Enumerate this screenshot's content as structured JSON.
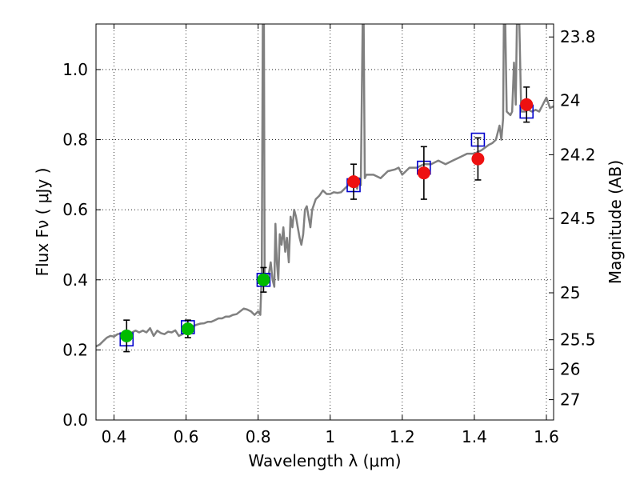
{
  "chart_data": {
    "type": "scatter",
    "xlabel": "Wavelength  λ (μm)",
    "ylabel": "Flux  Fν  ( μJy )",
    "ylabel_right": "Magnitude (AB)",
    "xlim": [
      0.35,
      1.62
    ],
    "ylim": [
      0.0,
      1.13
    ],
    "grid": true,
    "x_ticks": [
      {
        "value": 0.4,
        "label": "0.4"
      },
      {
        "value": 0.6,
        "label": "0.6"
      },
      {
        "value": 0.8,
        "label": "0.8"
      },
      {
        "value": 1.0,
        "label": "1"
      },
      {
        "value": 1.2,
        "label": "1.2"
      },
      {
        "value": 1.4,
        "label": "1.4"
      },
      {
        "value": 1.6,
        "label": "1.6"
      }
    ],
    "y_ticks": [
      {
        "value": 0.0,
        "label": "0.0"
      },
      {
        "value": 0.2,
        "label": "0.2"
      },
      {
        "value": 0.4,
        "label": "0.4"
      },
      {
        "value": 0.6,
        "label": "0.6"
      },
      {
        "value": 0.8,
        "label": "0.8"
      },
      {
        "value": 1.0,
        "label": "1.0"
      }
    ],
    "right_ticks": [
      {
        "flux": 1.093,
        "label": "23.8"
      },
      {
        "flux": 0.912,
        "label": "24"
      },
      {
        "flux": 0.757,
        "label": "24.2"
      },
      {
        "flux": 0.575,
        "label": "24.5"
      },
      {
        "flux": 0.363,
        "label": "25"
      },
      {
        "flux": 0.229,
        "label": "25.5"
      },
      {
        "flux": 0.145,
        "label": "26"
      },
      {
        "flux": 0.058,
        "label": "27"
      }
    ],
    "series": [
      {
        "name": "model_spectrum",
        "kind": "line",
        "color": "#808080",
        "points": [
          [
            0.35,
            0.21
          ],
          [
            0.36,
            0.215
          ],
          [
            0.37,
            0.225
          ],
          [
            0.38,
            0.235
          ],
          [
            0.39,
            0.24
          ],
          [
            0.4,
            0.238
          ],
          [
            0.41,
            0.245
          ],
          [
            0.42,
            0.247
          ],
          [
            0.43,
            0.238
          ],
          [
            0.44,
            0.245
          ],
          [
            0.45,
            0.25
          ],
          [
            0.46,
            0.255
          ],
          [
            0.47,
            0.25
          ],
          [
            0.48,
            0.255
          ],
          [
            0.49,
            0.25
          ],
          [
            0.5,
            0.262
          ],
          [
            0.51,
            0.24
          ],
          [
            0.52,
            0.255
          ],
          [
            0.53,
            0.248
          ],
          [
            0.54,
            0.245
          ],
          [
            0.55,
            0.252
          ],
          [
            0.56,
            0.25
          ],
          [
            0.57,
            0.256
          ],
          [
            0.58,
            0.24
          ],
          [
            0.59,
            0.245
          ],
          [
            0.6,
            0.252
          ],
          [
            0.61,
            0.262
          ],
          [
            0.62,
            0.268
          ],
          [
            0.63,
            0.272
          ],
          [
            0.64,
            0.275
          ],
          [
            0.65,
            0.276
          ],
          [
            0.66,
            0.28
          ],
          [
            0.67,
            0.28
          ],
          [
            0.68,
            0.285
          ],
          [
            0.69,
            0.29
          ],
          [
            0.7,
            0.29
          ],
          [
            0.71,
            0.295
          ],
          [
            0.72,
            0.295
          ],
          [
            0.73,
            0.3
          ],
          [
            0.74,
            0.302
          ],
          [
            0.75,
            0.31
          ],
          [
            0.76,
            0.318
          ],
          [
            0.77,
            0.315
          ],
          [
            0.78,
            0.31
          ],
          [
            0.79,
            0.3
          ],
          [
            0.8,
            0.31
          ],
          [
            0.806,
            0.3
          ],
          [
            0.81,
            0.42
          ],
          [
            0.813,
            1.13
          ],
          [
            0.816,
            1.13
          ],
          [
            0.818,
            0.42
          ],
          [
            0.822,
            0.4
          ],
          [
            0.83,
            0.42
          ],
          [
            0.835,
            0.45
          ],
          [
            0.84,
            0.4
          ],
          [
            0.845,
            0.38
          ],
          [
            0.848,
            0.56
          ],
          [
            0.852,
            0.45
          ],
          [
            0.856,
            0.4
          ],
          [
            0.86,
            0.53
          ],
          [
            0.865,
            0.5
          ],
          [
            0.87,
            0.55
          ],
          [
            0.875,
            0.48
          ],
          [
            0.88,
            0.52
          ],
          [
            0.885,
            0.45
          ],
          [
            0.89,
            0.58
          ],
          [
            0.895,
            0.55
          ],
          [
            0.9,
            0.6
          ],
          [
            0.905,
            0.58
          ],
          [
            0.91,
            0.55
          ],
          [
            0.915,
            0.52
          ],
          [
            0.92,
            0.5
          ],
          [
            0.925,
            0.53
          ],
          [
            0.93,
            0.6
          ],
          [
            0.935,
            0.61
          ],
          [
            0.94,
            0.58
          ],
          [
            0.945,
            0.55
          ],
          [
            0.95,
            0.6
          ],
          [
            0.96,
            0.63
          ],
          [
            0.97,
            0.64
          ],
          [
            0.98,
            0.655
          ],
          [
            0.99,
            0.645
          ],
          [
            1.0,
            0.645
          ],
          [
            1.01,
            0.65
          ],
          [
            1.02,
            0.648
          ],
          [
            1.03,
            0.65
          ],
          [
            1.04,
            0.66
          ],
          [
            1.05,
            0.67
          ],
          [
            1.06,
            0.68
          ],
          [
            1.065,
            0.69
          ],
          [
            1.07,
            0.67
          ],
          [
            1.075,
            0.66
          ],
          [
            1.08,
            0.69
          ],
          [
            1.085,
            0.67
          ],
          [
            1.09,
            1.13
          ],
          [
            1.093,
            1.13
          ],
          [
            1.096,
            0.69
          ],
          [
            1.1,
            0.7
          ],
          [
            1.12,
            0.7
          ],
          [
            1.14,
            0.69
          ],
          [
            1.16,
            0.71
          ],
          [
            1.18,
            0.715
          ],
          [
            1.19,
            0.72
          ],
          [
            1.2,
            0.7
          ],
          [
            1.21,
            0.71
          ],
          [
            1.22,
            0.72
          ],
          [
            1.24,
            0.72
          ],
          [
            1.26,
            0.73
          ],
          [
            1.28,
            0.73
          ],
          [
            1.3,
            0.74
          ],
          [
            1.32,
            0.73
          ],
          [
            1.34,
            0.74
          ],
          [
            1.36,
            0.75
          ],
          [
            1.38,
            0.76
          ],
          [
            1.4,
            0.76
          ],
          [
            1.42,
            0.77
          ],
          [
            1.44,
            0.785
          ],
          [
            1.45,
            0.79
          ],
          [
            1.46,
            0.8
          ],
          [
            1.47,
            0.84
          ],
          [
            1.475,
            0.8
          ],
          [
            1.48,
            0.86
          ],
          [
            1.482,
            1.13
          ],
          [
            1.486,
            1.13
          ],
          [
            1.49,
            0.88
          ],
          [
            1.5,
            0.87
          ],
          [
            1.505,
            0.88
          ],
          [
            1.51,
            1.02
          ],
          [
            1.515,
            0.9
          ],
          [
            1.518,
            1.13
          ],
          [
            1.525,
            1.13
          ],
          [
            1.53,
            0.88
          ],
          [
            1.54,
            0.88
          ],
          [
            1.55,
            0.885
          ],
          [
            1.56,
            0.88
          ],
          [
            1.57,
            0.885
          ],
          [
            1.58,
            0.88
          ],
          [
            1.59,
            0.9
          ],
          [
            1.6,
            0.92
          ],
          [
            1.61,
            0.89
          ],
          [
            1.62,
            0.895
          ]
        ]
      },
      {
        "name": "model_photometry",
        "kind": "square",
        "color": "#0000cc",
        "points": [
          [
            0.435,
            0.23
          ],
          [
            0.605,
            0.265
          ],
          [
            0.815,
            0.4
          ],
          [
            1.065,
            0.67
          ],
          [
            1.26,
            0.72
          ],
          [
            1.41,
            0.8
          ],
          [
            1.545,
            0.88
          ]
        ]
      },
      {
        "name": "observed_optical",
        "kind": "point",
        "color": "#00bb00",
        "points": [
          {
            "x": 0.435,
            "y": 0.24,
            "err": 0.045
          },
          {
            "x": 0.605,
            "y": 0.26,
            "err": 0.025
          },
          {
            "x": 0.815,
            "y": 0.4,
            "err": 0.035
          }
        ]
      },
      {
        "name": "observed_nir",
        "kind": "point",
        "color": "#ee1111",
        "points": [
          {
            "x": 1.065,
            "y": 0.68,
            "err": 0.05
          },
          {
            "x": 1.26,
            "y": 0.705,
            "err": 0.075
          },
          {
            "x": 1.41,
            "y": 0.745,
            "err": 0.06
          },
          {
            "x": 1.545,
            "y": 0.9,
            "err": 0.05
          }
        ]
      }
    ]
  }
}
